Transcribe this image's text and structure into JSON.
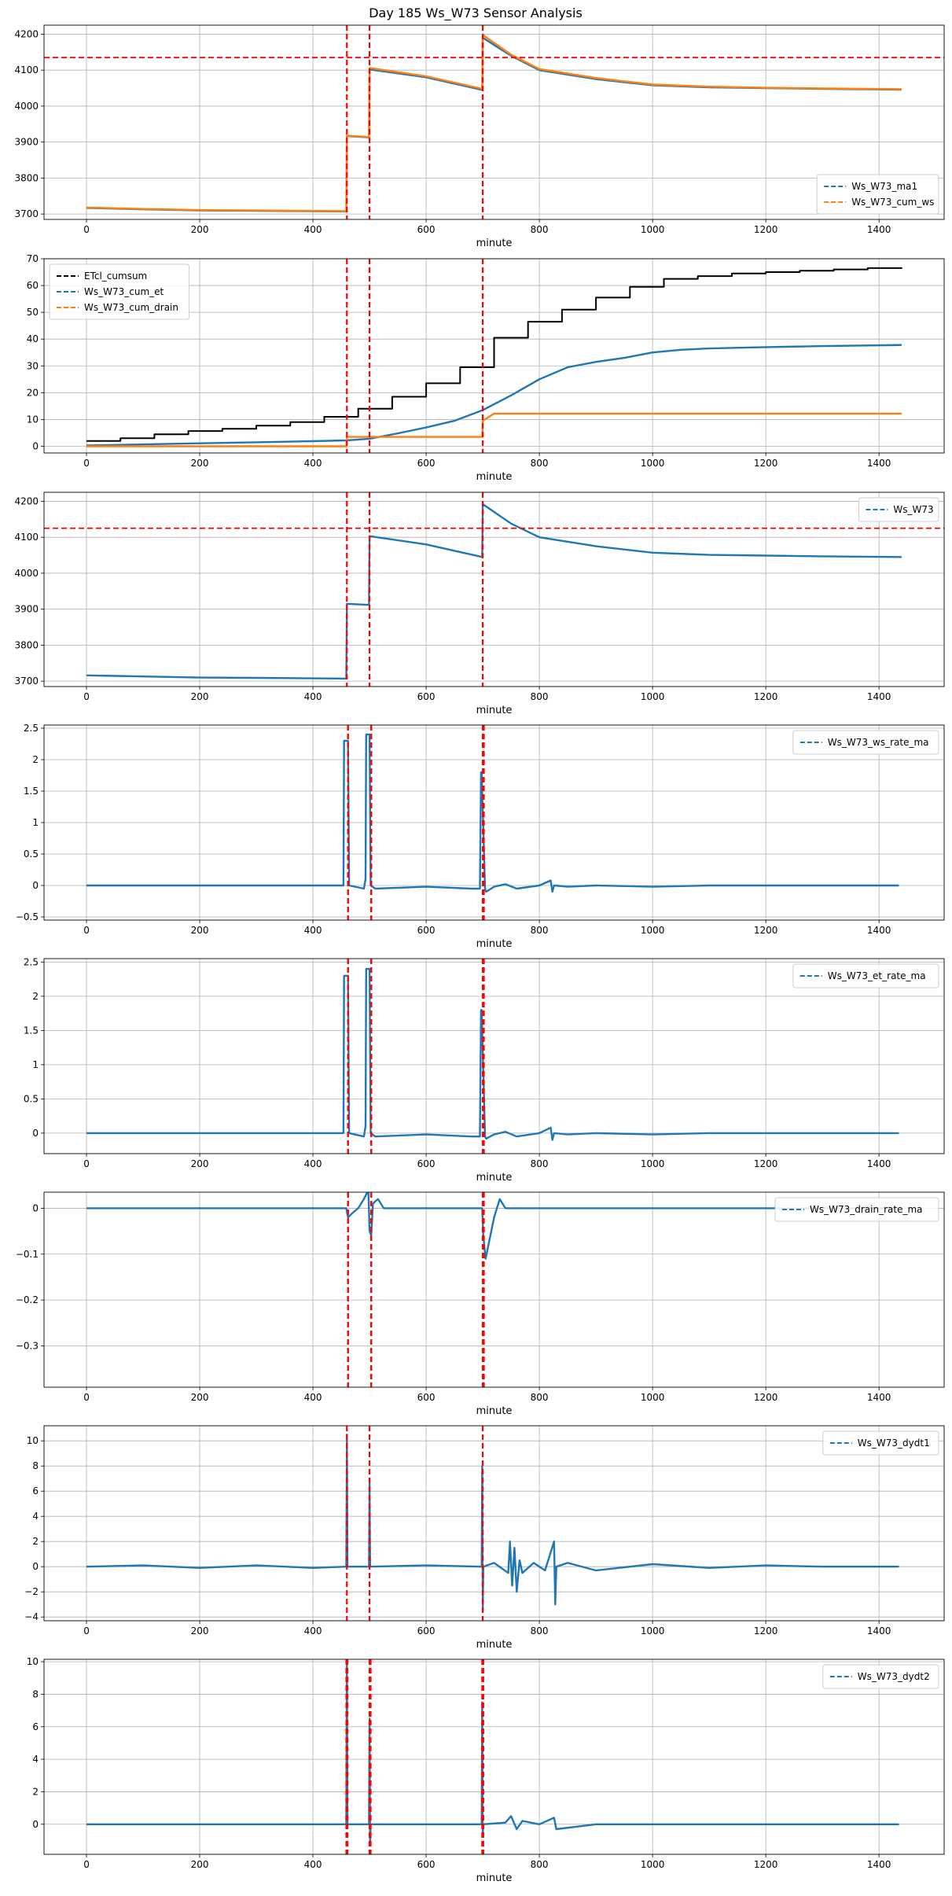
{
  "title": "Day 185 Ws_W73 Sensor Analysis",
  "colors": {
    "blue": "#1f77b4",
    "orange": "#ff7f0e",
    "black": "#000000",
    "red": "#ff0000",
    "grid": "#b0b0b0"
  },
  "chart_data": [
    {
      "type": "line",
      "xlabel": "minute",
      "xlim": [
        -75,
        1515
      ],
      "ylim": [
        3685,
        4225
      ],
      "xticks": [
        0,
        200,
        400,
        600,
        800,
        1000,
        1200,
        1400
      ],
      "yticks": [
        3700,
        3800,
        3900,
        4000,
        4100,
        4200
      ],
      "vlines": [
        460,
        500,
        700
      ],
      "hlines": [
        4135
      ],
      "legend": "lower-right",
      "series": [
        {
          "name": "Ws_W73_ma1",
          "color": "blue",
          "x": [
            0,
            100,
            200,
            300,
            459,
            460,
            499,
            500,
            600,
            699,
            700,
            750,
            800,
            900,
            1000,
            1100,
            1200,
            1300,
            1440
          ],
          "y": [
            3717,
            3713,
            3710,
            3709,
            3707,
            3917,
            3913,
            4102,
            4080,
            4045,
            4190,
            4140,
            4100,
            4075,
            4058,
            4052,
            4050,
            4048,
            4046
          ]
        },
        {
          "name": "Ws_W73_cum_ws",
          "color": "orange",
          "x": [
            0,
            100,
            200,
            300,
            459,
            460,
            499,
            500,
            600,
            699,
            700,
            750,
            800,
            900,
            1000,
            1100,
            1200,
            1300,
            1440
          ],
          "y": [
            3718,
            3714,
            3711,
            3710,
            3708,
            3918,
            3914,
            4106,
            4083,
            4048,
            4198,
            4143,
            4103,
            4078,
            4060,
            4054,
            4051,
            4049,
            4047
          ]
        }
      ]
    },
    {
      "type": "line",
      "xlabel": "minute",
      "xlim": [
        -75,
        1515
      ],
      "ylim": [
        -2.5,
        70
      ],
      "xticks": [
        0,
        200,
        400,
        600,
        800,
        1000,
        1200,
        1400
      ],
      "yticks": [
        0,
        10,
        20,
        30,
        40,
        50,
        60,
        70
      ],
      "vlines": [
        460,
        500,
        700
      ],
      "hlines": [],
      "legend": "upper-left",
      "series": [
        {
          "name": "ETcl_cumsum",
          "color": "black",
          "step": true,
          "x": [
            0,
            60,
            120,
            180,
            240,
            300,
            360,
            420,
            480,
            540,
            600,
            660,
            720,
            780,
            840,
            900,
            960,
            1020,
            1080,
            1140,
            1200,
            1260,
            1320,
            1380,
            1440
          ],
          "y": [
            2,
            3,
            4.5,
            5.7,
            6.5,
            7.7,
            9,
            11,
            14,
            18.5,
            23.5,
            29.5,
            40.5,
            46.5,
            51,
            55.5,
            59.5,
            62.5,
            63.5,
            64.5,
            65,
            65.5,
            66,
            66.5,
            66.7
          ]
        },
        {
          "name": "Ws_W73_cum_et",
          "color": "blue",
          "x": [
            0,
            100,
            200,
            300,
            400,
            459,
            500,
            550,
            600,
            650,
            700,
            750,
            800,
            850,
            900,
            950,
            1000,
            1050,
            1100,
            1200,
            1300,
            1440
          ],
          "y": [
            0.3,
            0.7,
            1.1,
            1.5,
            1.9,
            2.2,
            2.8,
            4.8,
            7,
            9.5,
            13.5,
            19,
            25,
            29.5,
            31.5,
            33,
            35,
            36,
            36.5,
            37,
            37.4,
            37.8
          ]
        },
        {
          "name": "Ws_W73_cum_drain",
          "color": "orange",
          "x": [
            0,
            459,
            460,
            499,
            500,
            699,
            700,
            720,
            1440
          ],
          "y": [
            0,
            0,
            3.5,
            3.5,
            3.5,
            3.5,
            9.5,
            12.2,
            12.2
          ]
        }
      ]
    },
    {
      "type": "line",
      "xlabel": "minute",
      "xlim": [
        -75,
        1515
      ],
      "ylim": [
        3685,
        4225
      ],
      "xticks": [
        0,
        200,
        400,
        600,
        800,
        1000,
        1200,
        1400
      ],
      "yticks": [
        3700,
        3800,
        3900,
        4000,
        4100,
        4200
      ],
      "vlines": [
        460,
        500,
        700
      ],
      "hlines": [
        4125
      ],
      "legend": "upper-right",
      "series": [
        {
          "name": "Ws_W73",
          "color": "blue",
          "x": [
            0,
            100,
            200,
            300,
            459,
            460,
            499,
            500,
            600,
            699,
            700,
            750,
            800,
            900,
            1000,
            1100,
            1200,
            1300,
            1440
          ],
          "y": [
            3716,
            3713,
            3710,
            3709,
            3707,
            3915,
            3912,
            4103,
            4080,
            4045,
            4192,
            4138,
            4100,
            4075,
            4057,
            4051,
            4049,
            4047,
            4045
          ]
        }
      ]
    },
    {
      "type": "line",
      "xlabel": "minute",
      "xlim": [
        -75,
        1515
      ],
      "ylim": [
        -0.55,
        2.55
      ],
      "xticks": [
        0,
        200,
        400,
        600,
        800,
        1000,
        1200,
        1400
      ],
      "yticks": [
        -0.5,
        0,
        0.5,
        1,
        1.5,
        2,
        2.5
      ],
      "vlines": [
        462,
        462,
        503,
        503,
        700,
        702
      ],
      "hlines": [],
      "legend": "upper-right",
      "series": [
        {
          "name": "Ws_W73_ws_rate_ma",
          "color": "blue",
          "x": [
            0,
            200,
            400,
            450,
            454,
            455,
            462,
            464,
            490,
            493,
            494,
            500,
            502,
            510,
            600,
            680,
            695,
            697,
            698,
            704,
            706,
            720,
            740,
            760,
            800,
            820,
            823,
            826,
            850,
            900,
            1000,
            1100,
            1200,
            1300,
            1435
          ],
          "y": [
            0,
            0,
            0,
            0,
            0,
            2.3,
            2.3,
            0,
            -0.05,
            0.1,
            2.4,
            2.4,
            0,
            -0.05,
            -0.02,
            -0.05,
            -0.05,
            1.8,
            1.8,
            -0.05,
            -0.1,
            -0.02,
            0.02,
            -0.05,
            0,
            0.08,
            -0.1,
            0,
            -0.02,
            0,
            -0.02,
            0,
            0,
            0,
            0
          ]
        }
      ]
    },
    {
      "type": "line",
      "xlabel": "minute",
      "xlim": [
        -75,
        1515
      ],
      "ylim": [
        -0.3,
        2.55
      ],
      "xticks": [
        0,
        200,
        400,
        600,
        800,
        1000,
        1200,
        1400
      ],
      "yticks": [
        0,
        0.5,
        1,
        1.5,
        2,
        2.5
      ],
      "vlines": [
        462,
        462,
        503,
        503,
        700,
        702
      ],
      "hlines": [],
      "legend": "upper-right",
      "series": [
        {
          "name": "Ws_W73_et_rate_ma",
          "color": "blue",
          "x": [
            0,
            200,
            400,
            450,
            454,
            455,
            462,
            464,
            490,
            493,
            494,
            500,
            502,
            510,
            600,
            680,
            695,
            697,
            698,
            704,
            706,
            720,
            740,
            760,
            800,
            820,
            823,
            826,
            850,
            900,
            1000,
            1100,
            1200,
            1300,
            1435
          ],
          "y": [
            0,
            0,
            0,
            0,
            0,
            2.3,
            2.3,
            0,
            -0.05,
            0.1,
            2.4,
            2.4,
            0,
            -0.05,
            -0.02,
            -0.05,
            -0.05,
            1.8,
            1.8,
            -0.05,
            -0.08,
            -0.02,
            0.02,
            -0.05,
            0,
            0.08,
            -0.1,
            0,
            -0.02,
            0,
            -0.02,
            0,
            0,
            0,
            0
          ]
        }
      ]
    },
    {
      "type": "line",
      "xlabel": "minute",
      "xlim": [
        -75,
        1515
      ],
      "ylim": [
        -0.39,
        0.035
      ],
      "xticks": [
        0,
        200,
        400,
        600,
        800,
        1000,
        1200,
        1400
      ],
      "yticks": [
        -0.3,
        -0.2,
        -0.1,
        0
      ],
      "vlines": [
        462,
        462,
        503,
        503,
        700,
        702
      ],
      "hlines": [],
      "legend": "upper-right",
      "series": [
        {
          "name": "Ws_W73_drain_rate_ma",
          "color": "blue",
          "x": [
            0,
            200,
            459,
            462,
            470,
            480,
            490,
            498,
            500,
            503,
            506,
            510,
            515,
            520,
            525,
            600,
            699,
            701,
            705,
            710,
            715,
            720,
            725,
            730,
            740,
            800,
            1000,
            1200,
            1435
          ],
          "y": [
            0,
            0,
            0,
            -0.02,
            -0.01,
            0,
            0.02,
            0.04,
            -0.05,
            -0.06,
            0.01,
            0.015,
            0.02,
            0.01,
            0,
            0,
            0,
            -0.06,
            -0.11,
            -0.08,
            -0.05,
            -0.02,
            0,
            0.02,
            0,
            0,
            0,
            0,
            0
          ]
        }
      ]
    },
    {
      "type": "line",
      "xlabel": "minute",
      "xlim": [
        -75,
        1515
      ],
      "ylim": [
        -4.3,
        11.2
      ],
      "xticks": [
        0,
        200,
        400,
        600,
        800,
        1000,
        1200,
        1400
      ],
      "yticks": [
        -4,
        -2,
        0,
        2,
        4,
        6,
        8,
        10
      ],
      "vlines": [
        460,
        500,
        700
      ],
      "hlines": [],
      "legend": "upper-right",
      "series": [
        {
          "name": "Ws_W73_dydt1",
          "color": "blue",
          "x": [
            0,
            100,
            200,
            300,
            400,
            459,
            460,
            461,
            499,
            500,
            501,
            600,
            698,
            699,
            700,
            701,
            720,
            745,
            748,
            752,
            756,
            760,
            765,
            770,
            790,
            810,
            826,
            828,
            830,
            850,
            900,
            1000,
            1100,
            1200,
            1300,
            1435
          ],
          "y": [
            0,
            0.1,
            -0.1,
            0.1,
            -0.1,
            0,
            10.5,
            0,
            0,
            7,
            0,
            0.1,
            0,
            8,
            -3.5,
            0,
            0.3,
            -0.5,
            2,
            -1.5,
            1.5,
            -2,
            0.5,
            -0.5,
            0.3,
            -0.3,
            2,
            -3,
            0,
            0.3,
            -0.3,
            0.2,
            -0.1,
            0.1,
            0,
            0
          ]
        }
      ]
    },
    {
      "type": "line",
      "xlabel": "minute",
      "xlim": [
        -75,
        1515
      ],
      "ylim": [
        -1.85,
        10.15
      ],
      "xticks": [
        0,
        200,
        400,
        600,
        800,
        1000,
        1200,
        1400
      ],
      "yticks": [
        0,
        2,
        4,
        6,
        8,
        10
      ],
      "vlines": [
        459,
        461,
        500,
        502,
        699,
        701
      ],
      "hlines": [],
      "legend": "upper-right",
      "series": [
        {
          "name": "Ws_W73_dydt2",
          "color": "blue",
          "x": [
            0,
            200,
            400,
            459,
            460,
            461,
            499,
            500,
            501,
            502,
            600,
            698,
            699,
            700,
            701,
            740,
            750,
            760,
            770,
            800,
            826,
            830,
            900,
            1000,
            1200,
            1435
          ],
          "y": [
            0,
            0,
            0,
            0,
            10,
            0,
            0,
            6.5,
            -1.3,
            0,
            0,
            0,
            7.5,
            -0.6,
            0,
            0.1,
            0.5,
            -0.3,
            0.2,
            0,
            0.4,
            -0.3,
            0,
            0,
            0,
            0
          ]
        }
      ]
    }
  ]
}
